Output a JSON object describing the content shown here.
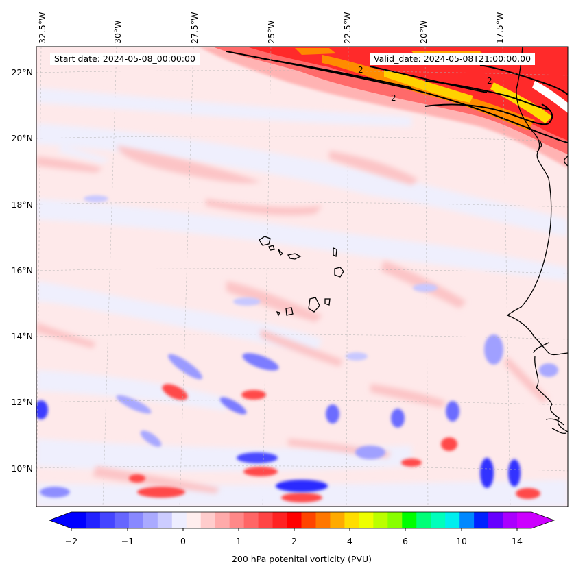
{
  "map": {
    "start_date": "Start date: 2024-05-08_00:00:00",
    "valid_date": "Valid_date: 2024-05-08T21:00:00.00",
    "lon_labels": [
      "32.5°W",
      "30°W",
      "27.5°W",
      "25°W",
      "22.5°W",
      "20°W",
      "17.5°W"
    ],
    "lat_labels": [
      "22°N",
      "20°N",
      "18°N",
      "16°N",
      "14°N",
      "12°N",
      "10°N"
    ],
    "contour_label": "2",
    "field": "200 hPa potential vorticity",
    "region": {
      "lon_range": [
        -33,
        -15.5
      ],
      "lat_range": [
        9,
        22.5
      ]
    }
  },
  "colorbar": {
    "title": "200 hPa potenital vorticity (PVU)",
    "ticks": [
      "−2",
      "−1",
      "0",
      "1",
      "2",
      "4",
      "6",
      "10",
      "14"
    ],
    "colors": [
      "#0000ff",
      "#2222ff",
      "#4444ff",
      "#6666ff",
      "#8888ff",
      "#aaaaff",
      "#ccccff",
      "#eeeeff",
      "#ffeeee",
      "#ffcccc",
      "#ffaaaa",
      "#ff8888",
      "#ff6666",
      "#ff4444",
      "#ff2222",
      "#ff0000",
      "#ff4400",
      "#ff7700",
      "#ffaa00",
      "#ffdd00",
      "#eeff00",
      "#bbff00",
      "#88ff00",
      "#00ff00",
      "#00ff77",
      "#00ffbb",
      "#00eeee",
      "#0088ff",
      "#0022ff",
      "#6600ff",
      "#aa00ff",
      "#cc00ff"
    ],
    "under_color": "#0000ff",
    "over_color": "#cc00ff"
  }
}
